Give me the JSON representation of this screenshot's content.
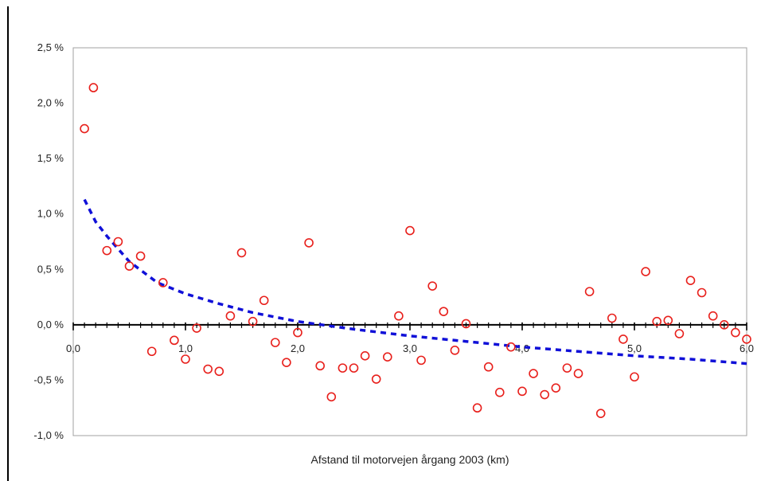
{
  "chart_data": {
    "type": "scatter",
    "title": "",
    "xlabel": "Afstand til motorvejen årgang 2003 (km)",
    "ylabel": "",
    "xlim": [
      0,
      6
    ],
    "ylim": [
      -1.0,
      2.5
    ],
    "x_ticks": [
      0,
      1,
      2,
      3,
      4,
      5,
      6
    ],
    "x_tick_labels": [
      "0,0",
      "1,0",
      "2,0",
      "3,0",
      "4,0",
      "5,0",
      "6,0"
    ],
    "y_ticks": [
      -1.0,
      -0.5,
      0.0,
      0.5,
      1.0,
      1.5,
      2.0,
      2.5
    ],
    "y_tick_labels": [
      "-1,0 %",
      "-0,5 %",
      "0,0 %",
      "0,5 %",
      "1,0 %",
      "1,5 %",
      "2,0 %",
      "2,5 %"
    ],
    "grid": false,
    "legend": "none",
    "colors": {
      "points": "#e8201c",
      "trend": "#1010d8",
      "axis": "#000000",
      "plot_border": "#a0a0a0"
    },
    "series": [
      {
        "kind": "points",
        "x": [
          0.1,
          0.18,
          0.3,
          0.4,
          0.5,
          0.6,
          0.7,
          0.8,
          0.9,
          1.0,
          1.1,
          1.2,
          1.3,
          1.4,
          1.5,
          1.6,
          1.7,
          1.8,
          1.9,
          2.0,
          2.1,
          2.2,
          2.3,
          2.4,
          2.5,
          2.6,
          2.7,
          2.8,
          2.9,
          3.0,
          3.1,
          3.2,
          3.3,
          3.4,
          3.5,
          3.6,
          3.7,
          3.8,
          3.9,
          4.0,
          4.1,
          4.2,
          4.3,
          4.4,
          4.5,
          4.6,
          4.7,
          4.8,
          4.9,
          5.0,
          5.1,
          5.2,
          5.3,
          5.4,
          5.5,
          5.6,
          5.7,
          5.8,
          5.9,
          6.0
        ],
        "y": [
          1.77,
          2.14,
          0.67,
          0.75,
          0.53,
          0.62,
          -0.24,
          0.38,
          -0.14,
          -0.31,
          -0.03,
          -0.4,
          -0.42,
          0.08,
          0.65,
          0.03,
          0.22,
          -0.16,
          -0.34,
          -0.07,
          0.74,
          -0.37,
          -0.65,
          -0.39,
          -0.39,
          -0.28,
          -0.49,
          -0.29,
          0.08,
          0.85,
          -0.32,
          0.35,
          0.12,
          -0.23,
          0.01,
          -0.75,
          -0.38,
          -0.61,
          -0.2,
          -0.6,
          -0.44,
          -0.63,
          -0.57,
          -0.39,
          -0.44,
          0.3,
          -0.8,
          0.06,
          -0.13,
          -0.47,
          0.48,
          0.03,
          0.04,
          -0.08,
          0.4,
          0.29,
          0.08,
          0.0,
          -0.07,
          -0.13
        ]
      },
      {
        "kind": "trend",
        "x": [
          0.1,
          0.2,
          0.3,
          0.5,
          0.75,
          1.0,
          1.3,
          1.6,
          2.0,
          2.5,
          3.0,
          3.5,
          4.0,
          4.5,
          5.0,
          5.5,
          6.0
        ],
        "y": [
          1.13,
          0.93,
          0.8,
          0.57,
          0.38,
          0.28,
          0.19,
          0.11,
          0.03,
          -0.04,
          -0.1,
          -0.15,
          -0.2,
          -0.24,
          -0.28,
          -0.31,
          -0.35
        ]
      }
    ]
  }
}
